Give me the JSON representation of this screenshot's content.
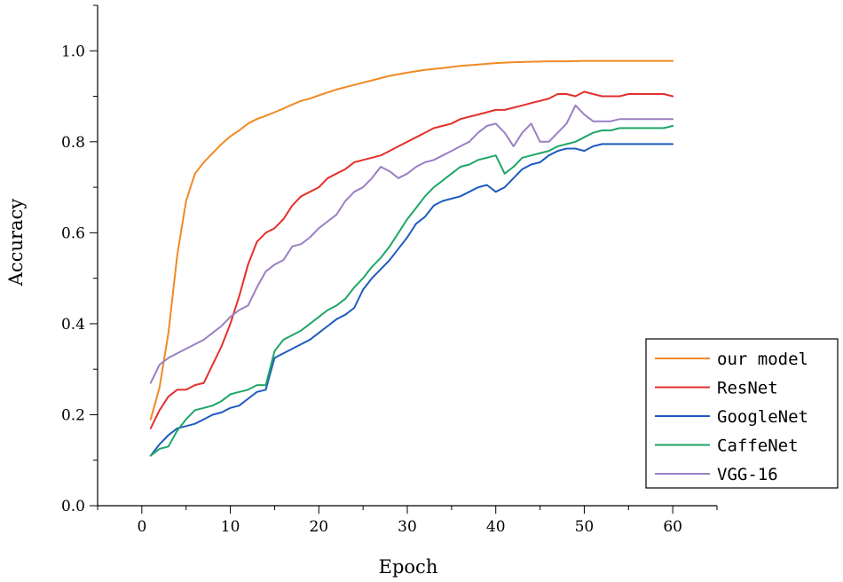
{
  "chart_data": {
    "type": "line",
    "xlabel": "Epoch",
    "ylabel": "Accuracy",
    "xlim": [
      -5,
      65
    ],
    "ylim": [
      0,
      1.1
    ],
    "xticks": [
      0,
      10,
      20,
      30,
      40,
      50,
      60
    ],
    "yticks": [
      0.0,
      0.2,
      0.4,
      0.6,
      0.8,
      1.0
    ],
    "ytick_labels": [
      "0.0",
      "0.2",
      "0.4",
      "0.6",
      "0.8",
      "1.0"
    ],
    "legend_position": "bottom-right",
    "series": [
      {
        "name": "our model",
        "color": "#F08A24",
        "x": [
          1,
          2,
          3,
          4,
          5,
          6,
          7,
          8,
          9,
          10,
          11,
          12,
          13,
          14,
          15,
          16,
          17,
          18,
          19,
          20,
          22,
          24,
          26,
          28,
          30,
          32,
          34,
          36,
          38,
          40,
          42,
          44,
          46,
          48,
          50,
          52,
          54,
          56,
          58,
          60
        ],
        "y": [
          0.19,
          0.26,
          0.38,
          0.55,
          0.67,
          0.73,
          0.755,
          0.775,
          0.795,
          0.812,
          0.825,
          0.84,
          0.85,
          0.857,
          0.865,
          0.873,
          0.882,
          0.89,
          0.895,
          0.902,
          0.915,
          0.925,
          0.935,
          0.945,
          0.952,
          0.958,
          0.962,
          0.967,
          0.97,
          0.973,
          0.975,
          0.976,
          0.977,
          0.977,
          0.978,
          0.978,
          0.978,
          0.978,
          0.978,
          0.978
        ]
      },
      {
        "name": "ResNet",
        "color": "#E3302B",
        "x": [
          1,
          2,
          3,
          4,
          5,
          6,
          7,
          8,
          9,
          10,
          11,
          12,
          13,
          14,
          15,
          16,
          17,
          18,
          19,
          20,
          21,
          22,
          23,
          24,
          25,
          26,
          27,
          28,
          29,
          30,
          31,
          32,
          33,
          34,
          35,
          36,
          37,
          38,
          39,
          40,
          41,
          42,
          43,
          44,
          45,
          46,
          47,
          48,
          49,
          50,
          51,
          52,
          53,
          54,
          55,
          56,
          57,
          58,
          59,
          60
        ],
        "y": [
          0.17,
          0.21,
          0.24,
          0.255,
          0.255,
          0.265,
          0.27,
          0.31,
          0.35,
          0.4,
          0.46,
          0.53,
          0.58,
          0.6,
          0.61,
          0.63,
          0.66,
          0.68,
          0.69,
          0.7,
          0.72,
          0.73,
          0.74,
          0.755,
          0.76,
          0.765,
          0.77,
          0.78,
          0.79,
          0.8,
          0.81,
          0.82,
          0.83,
          0.835,
          0.84,
          0.85,
          0.855,
          0.86,
          0.865,
          0.87,
          0.87,
          0.875,
          0.88,
          0.885,
          0.89,
          0.895,
          0.905,
          0.905,
          0.9,
          0.91,
          0.905,
          0.9,
          0.9,
          0.9,
          0.905,
          0.905,
          0.905,
          0.905,
          0.905,
          0.9
        ]
      },
      {
        "name": "GoogleNet",
        "color": "#1F5BBF",
        "x": [
          1,
          2,
          3,
          4,
          5,
          6,
          7,
          8,
          9,
          10,
          11,
          12,
          13,
          14,
          15,
          16,
          17,
          18,
          19,
          20,
          21,
          22,
          23,
          24,
          25,
          26,
          27,
          28,
          29,
          30,
          31,
          32,
          33,
          34,
          35,
          36,
          37,
          38,
          39,
          40,
          41,
          42,
          43,
          44,
          45,
          46,
          47,
          48,
          49,
          50,
          51,
          52,
          53,
          54,
          55,
          56,
          57,
          58,
          59,
          60
        ],
        "y": [
          0.11,
          0.135,
          0.155,
          0.17,
          0.175,
          0.18,
          0.19,
          0.2,
          0.205,
          0.215,
          0.22,
          0.235,
          0.25,
          0.255,
          0.325,
          0.335,
          0.345,
          0.355,
          0.365,
          0.38,
          0.395,
          0.41,
          0.42,
          0.435,
          0.475,
          0.5,
          0.52,
          0.54,
          0.565,
          0.59,
          0.62,
          0.635,
          0.66,
          0.67,
          0.675,
          0.68,
          0.69,
          0.7,
          0.705,
          0.69,
          0.7,
          0.72,
          0.74,
          0.75,
          0.755,
          0.77,
          0.78,
          0.785,
          0.785,
          0.78,
          0.79,
          0.795,
          0.795,
          0.795,
          0.795,
          0.795,
          0.795,
          0.795,
          0.795,
          0.795
        ]
      },
      {
        "name": "CaffeNet",
        "color": "#1FA667",
        "x": [
          1,
          2,
          3,
          4,
          5,
          6,
          7,
          8,
          9,
          10,
          11,
          12,
          13,
          14,
          15,
          16,
          17,
          18,
          19,
          20,
          21,
          22,
          23,
          24,
          25,
          26,
          27,
          28,
          29,
          30,
          31,
          32,
          33,
          34,
          35,
          36,
          37,
          38,
          39,
          40,
          41,
          42,
          43,
          44,
          45,
          46,
          47,
          48,
          49,
          50,
          51,
          52,
          53,
          54,
          55,
          56,
          57,
          58,
          59,
          60
        ],
        "y": [
          0.11,
          0.125,
          0.13,
          0.165,
          0.19,
          0.21,
          0.215,
          0.22,
          0.23,
          0.245,
          0.25,
          0.255,
          0.265,
          0.265,
          0.34,
          0.365,
          0.375,
          0.385,
          0.4,
          0.415,
          0.43,
          0.44,
          0.455,
          0.48,
          0.5,
          0.525,
          0.545,
          0.57,
          0.6,
          0.63,
          0.655,
          0.68,
          0.7,
          0.715,
          0.73,
          0.745,
          0.75,
          0.76,
          0.765,
          0.77,
          0.73,
          0.745,
          0.765,
          0.77,
          0.775,
          0.78,
          0.79,
          0.795,
          0.8,
          0.81,
          0.82,
          0.825,
          0.825,
          0.83,
          0.83,
          0.83,
          0.83,
          0.83,
          0.83,
          0.835
        ]
      },
      {
        "name": "VGG-16",
        "color": "#9B7FC4",
        "x": [
          1,
          2,
          3,
          4,
          5,
          6,
          7,
          8,
          9,
          10,
          11,
          12,
          13,
          14,
          15,
          16,
          17,
          18,
          19,
          20,
          21,
          22,
          23,
          24,
          25,
          26,
          27,
          28,
          29,
          30,
          31,
          32,
          33,
          34,
          35,
          36,
          37,
          38,
          39,
          40,
          41,
          42,
          43,
          44,
          45,
          46,
          47,
          48,
          49,
          50,
          51,
          52,
          53,
          54,
          55,
          56,
          57,
          58,
          59,
          60
        ],
        "y": [
          0.27,
          0.31,
          0.325,
          0.335,
          0.345,
          0.355,
          0.365,
          0.38,
          0.395,
          0.415,
          0.43,
          0.44,
          0.48,
          0.515,
          0.53,
          0.54,
          0.57,
          0.575,
          0.59,
          0.61,
          0.625,
          0.64,
          0.67,
          0.69,
          0.7,
          0.72,
          0.745,
          0.735,
          0.72,
          0.73,
          0.745,
          0.755,
          0.76,
          0.77,
          0.78,
          0.79,
          0.8,
          0.82,
          0.835,
          0.84,
          0.82,
          0.79,
          0.82,
          0.84,
          0.8,
          0.8,
          0.82,
          0.84,
          0.88,
          0.86,
          0.845,
          0.845,
          0.845,
          0.85,
          0.85,
          0.85,
          0.85,
          0.85,
          0.85,
          0.85
        ]
      }
    ]
  }
}
